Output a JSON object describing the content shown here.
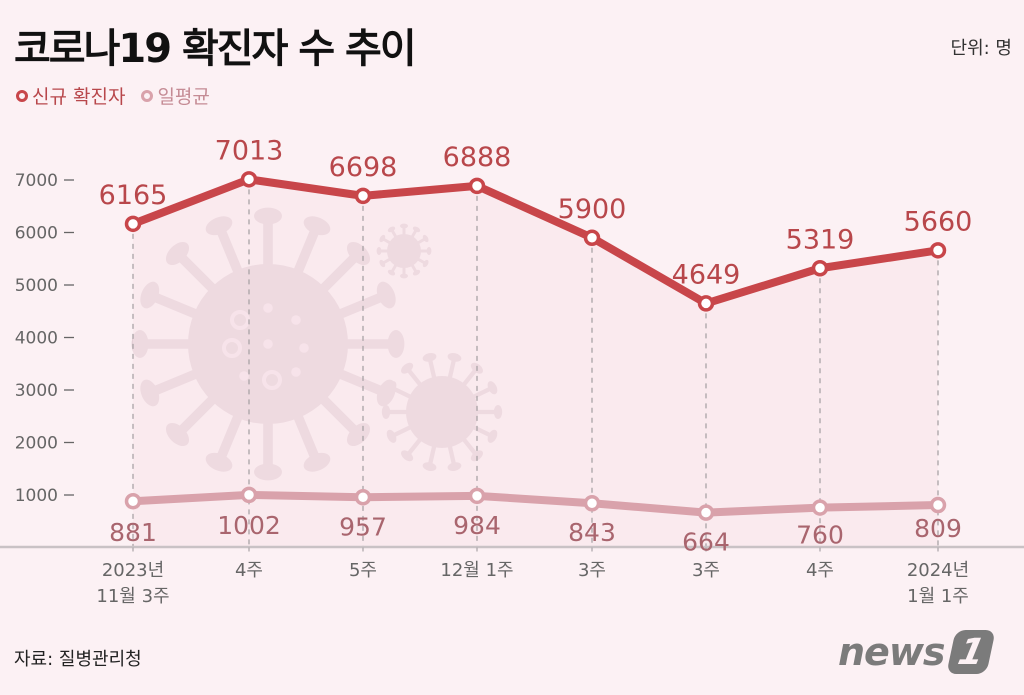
{
  "header": {
    "title": "코로나19 확진자 수 추이",
    "unit": "단위: 명"
  },
  "legend": [
    {
      "label": "신규 확진자",
      "color": "#c8464a"
    },
    {
      "label": "일평균",
      "color": "#d9a2ab"
    }
  ],
  "footer": {
    "source": "자료: 질병관리청",
    "logo_text": "news",
    "logo_mark": "1"
  },
  "colors": {
    "background": "#fcf1f4",
    "plot_fill": "#f7e3ea",
    "primary_line": "#c8464a",
    "secondary_line": "#d9a2ab",
    "primary_label": "#b8474b",
    "secondary_label": "#a9656e",
    "axis_text": "#666666",
    "virus": "#e3cfd6"
  },
  "chart_data": {
    "type": "line",
    "title": "코로나19 확진자 수 추이",
    "xlabel": "",
    "ylabel": "단위: 명",
    "ylim": [
      0,
      7000
    ],
    "yticks": [
      1000,
      2000,
      3000,
      4000,
      5000,
      6000,
      7000
    ],
    "grid": false,
    "legend_position": "top-left",
    "categories": [
      [
        "2023년",
        "11월 3주"
      ],
      [
        "4주"
      ],
      [
        "5주"
      ],
      [
        "12월 1주"
      ],
      [
        "3주"
      ],
      [
        "3주"
      ],
      [
        "4주"
      ],
      [
        "2024년",
        "1월 1주"
      ]
    ],
    "series": [
      {
        "name": "신규 확진자",
        "values": [
          6165,
          7013,
          6698,
          6888,
          5900,
          4649,
          5319,
          5660
        ]
      },
      {
        "name": "일평균",
        "values": [
          881,
          1002,
          957,
          984,
          843,
          664,
          760,
          809
        ]
      }
    ]
  }
}
